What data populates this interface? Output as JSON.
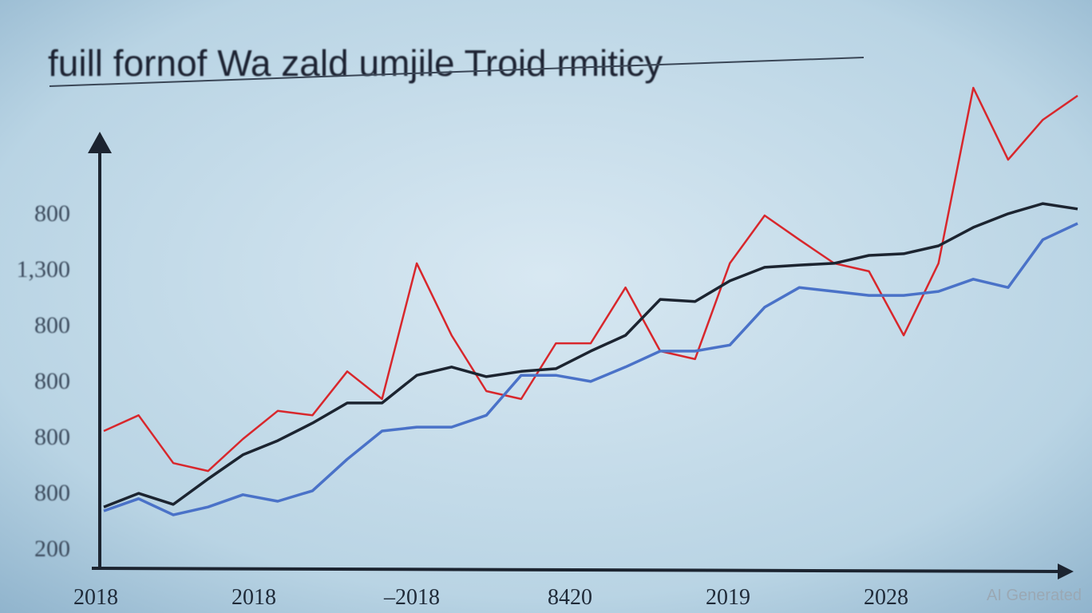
{
  "chart_data": {
    "type": "line",
    "title": "fuill fornof Wa zald umjile Troid rmiticy",
    "y_labels": [
      "800",
      "1,300",
      "800",
      "800",
      "800",
      "800",
      "200"
    ],
    "x_labels": [
      "2018",
      "2018",
      "–2018",
      "8420",
      "2019",
      "2028"
    ],
    "x": [
      0,
      1,
      2,
      3,
      4,
      5,
      6,
      7,
      8,
      9,
      10,
      11,
      12,
      13,
      14,
      15,
      16,
      17,
      18,
      19,
      20,
      21,
      22,
      23,
      24,
      25,
      26,
      27,
      28
    ],
    "xlim": [
      0,
      28
    ],
    "ylim": [
      0,
      120
    ],
    "series": [
      {
        "color": "#d8272c",
        "values": [
          30.9,
          34.5,
          23.6,
          21.8,
          29.1,
          35.5,
          34.5,
          44.5,
          38.2,
          69.1,
          52.7,
          40,
          38.2,
          50.9,
          50.9,
          63.6,
          49.1,
          47.3,
          69.1,
          80,
          74.5,
          69.1,
          67.3,
          52.7,
          69.1,
          109.1,
          92.7,
          101.8,
          107.3
        ]
      },
      {
        "color": "#4a72c8",
        "values": [
          12.7,
          15.5,
          11.8,
          13.6,
          16.4,
          14.9,
          17.3,
          24.5,
          30.9,
          31.8,
          31.8,
          34.5,
          43.6,
          43.6,
          42.2,
          45.5,
          49.1,
          49.1,
          50.5,
          59.1,
          63.6,
          62.7,
          61.8,
          61.8,
          62.7,
          65.5,
          63.6,
          74.5,
          78.2
        ]
      },
      {
        "color": "#1c2430",
        "values": [
          13.6,
          16.7,
          14.2,
          20,
          25.5,
          28.7,
          32.7,
          37.3,
          37.3,
          43.6,
          45.5,
          43.3,
          44.5,
          45.1,
          49.1,
          52.7,
          60.9,
          60.4,
          65.1,
          68.2,
          68.7,
          69.1,
          70.9,
          71.3,
          73.1,
          77.3,
          80.4,
          82.7,
          81.5
        ]
      }
    ],
    "watermark": "AI Generated"
  }
}
